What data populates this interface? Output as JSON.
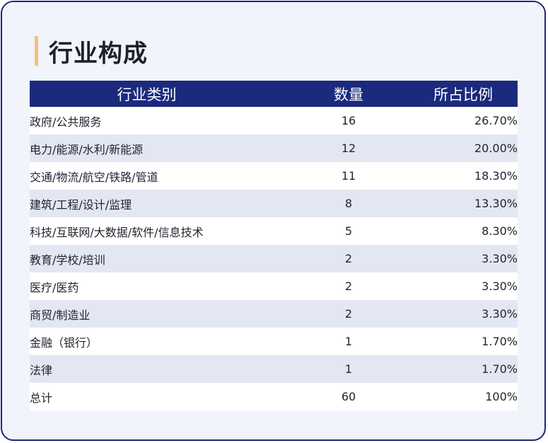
{
  "title": "行业构成",
  "table": {
    "headers": {
      "category": "行业类别",
      "count": "数量",
      "percent": "所占比例"
    },
    "rows": [
      {
        "category": "政府/公共服务",
        "count": "16",
        "percent": "26.70%"
      },
      {
        "category": "电力/能源/水利/新能源",
        "count": "12",
        "percent": "20.00%"
      },
      {
        "category": "交通/物流/航空/铁路/管道",
        "count": "11",
        "percent": "18.30%"
      },
      {
        "category": "建筑/工程/设计/监理",
        "count": "8",
        "percent": "13.30%"
      },
      {
        "category": "科技/互联网/大数据/软件/信息技术",
        "count": "5",
        "percent": "8.30%"
      },
      {
        "category": "教育/学校/培训",
        "count": "2",
        "percent": "3.30%"
      },
      {
        "category": "医疗/医药",
        "count": "2",
        "percent": "3.30%"
      },
      {
        "category": "商贸/制造业",
        "count": "2",
        "percent": "3.30%"
      },
      {
        "category": "金融（银行）",
        "count": "1",
        "percent": "1.70%"
      },
      {
        "category": "法律",
        "count": "1",
        "percent": "1.70%"
      },
      {
        "category": "总计",
        "count": "60",
        "percent": "100%"
      }
    ]
  },
  "colors": {
    "header_bg": "#1b2a7d",
    "accent_bar": "#f6c07a",
    "card_border": "#1c2a78",
    "stripe": "#e3e7f3"
  }
}
